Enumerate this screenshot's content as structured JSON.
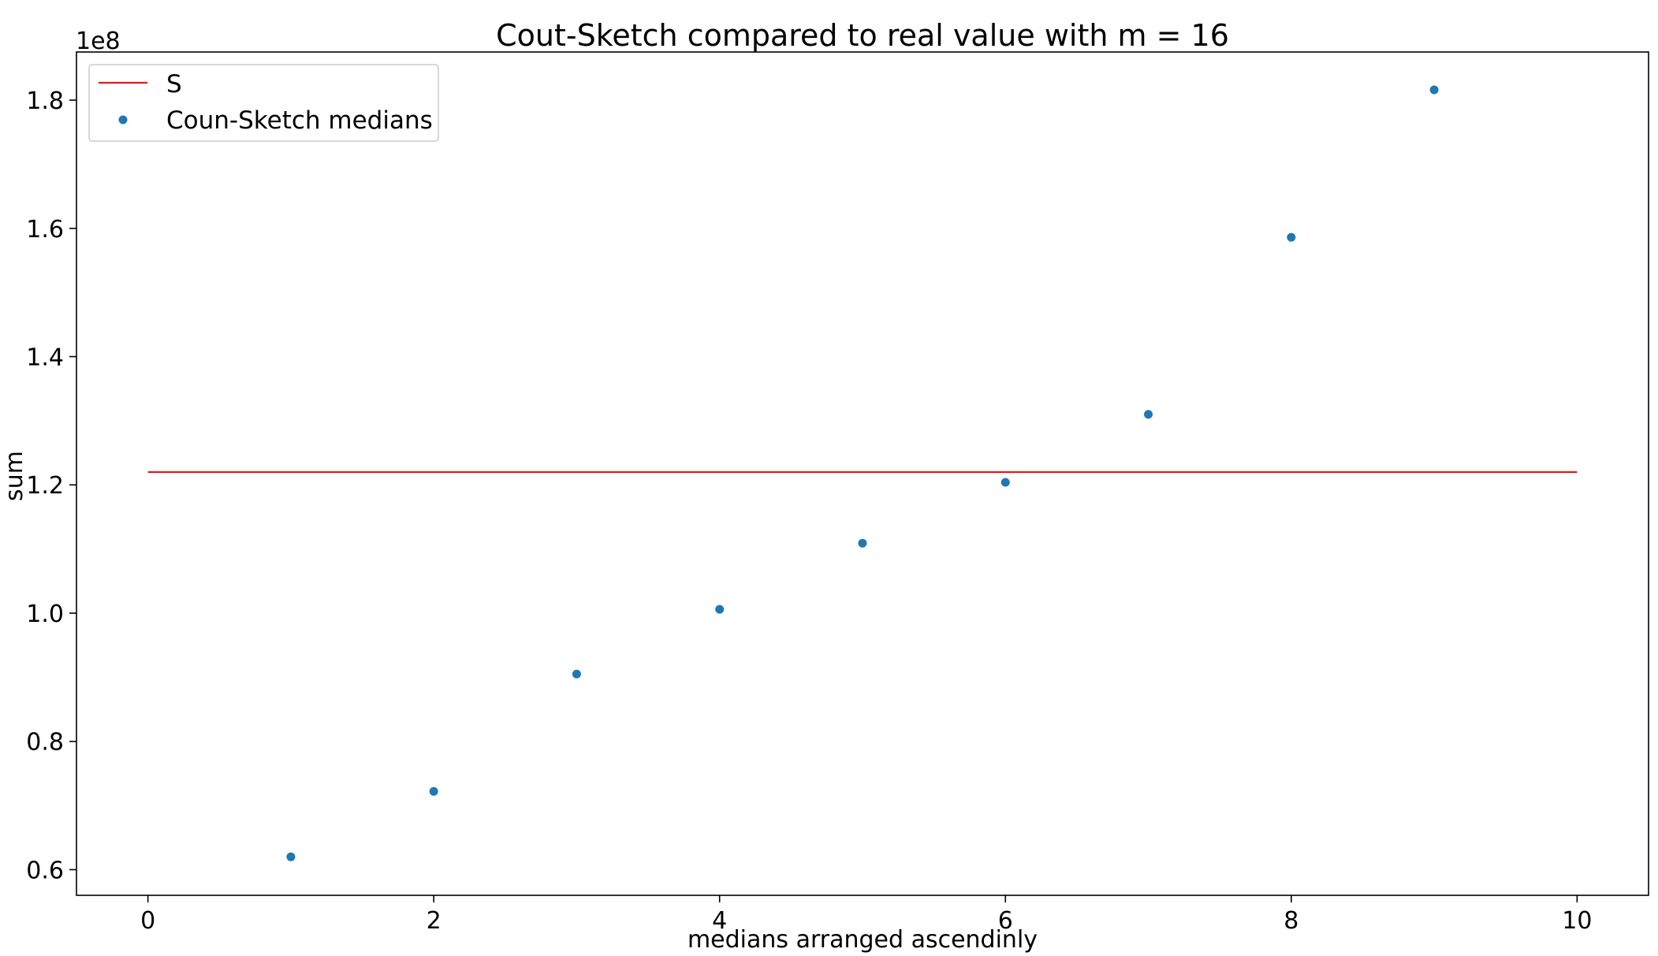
{
  "chart_data": {
    "type": "scatter",
    "title": "Cout-Sketch compared to real value with m = 16",
    "xlabel": "medians arranged ascendinly",
    "ylabel": "sum",
    "y_offset_label": "1e8",
    "xlim": [
      -0.5,
      10.5
    ],
    "ylim": [
      0.56,
      1.875
    ],
    "y_scale_factor": 100000000,
    "x_ticks": [
      0,
      2,
      4,
      6,
      8,
      10
    ],
    "x_tick_labels": [
      "0",
      "2",
      "4",
      "6",
      "8",
      "10"
    ],
    "y_ticks": [
      0.6,
      0.8,
      1.0,
      1.2,
      1.4,
      1.6,
      1.8
    ],
    "y_tick_labels": [
      "0.6",
      "0.8",
      "1.0",
      "1.2",
      "1.4",
      "1.6",
      "1.8"
    ],
    "grid": false,
    "legend_position": "upper-left",
    "series": [
      {
        "name": "S",
        "kind": "hline",
        "color": "#e8191c",
        "x": [
          0,
          10
        ],
        "y": [
          1.22,
          1.22
        ]
      },
      {
        "name": "Coun-Sketch medians",
        "kind": "scatter",
        "color": "#1f77b4",
        "x": [
          1,
          2,
          3,
          4,
          5,
          6,
          7,
          8,
          9
        ],
        "y": [
          0.62,
          0.722,
          0.905,
          1.006,
          1.109,
          1.204,
          1.31,
          1.586,
          1.816
        ]
      }
    ]
  }
}
